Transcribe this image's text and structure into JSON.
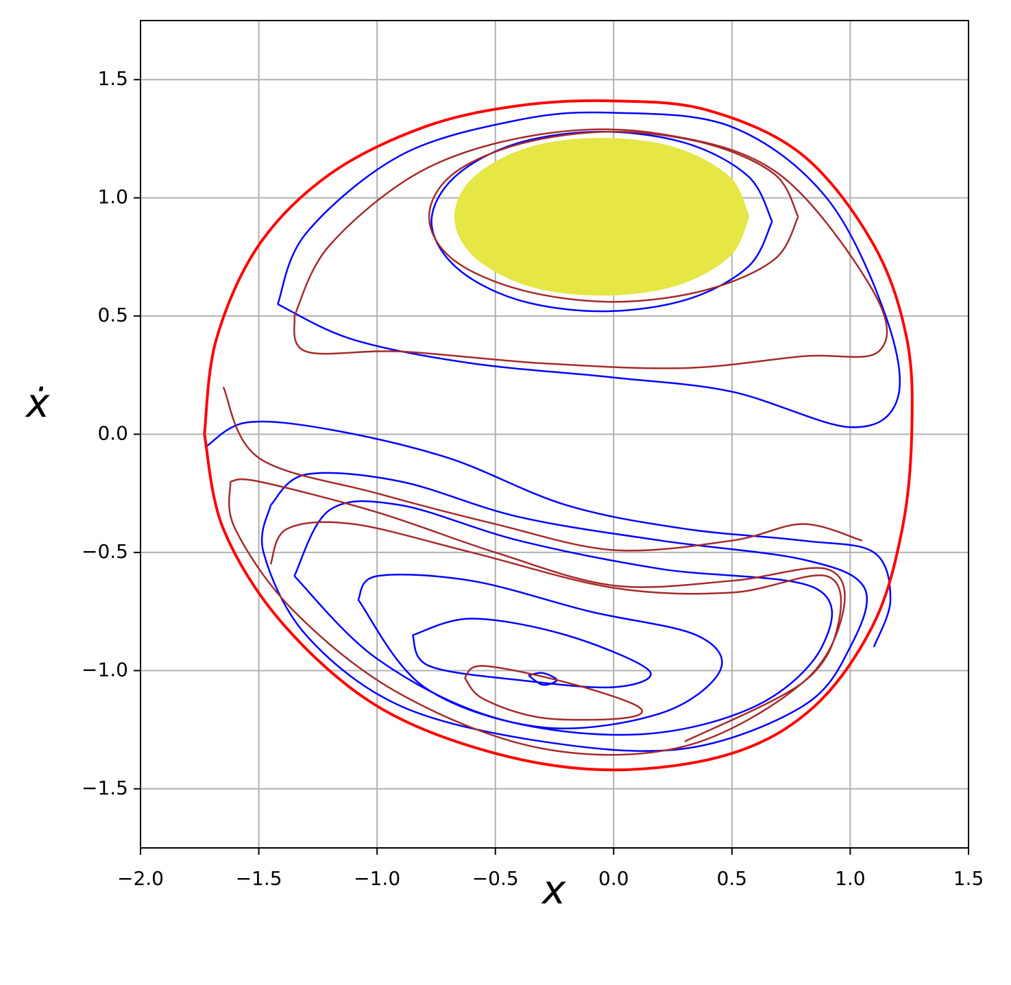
{
  "chart_data": {
    "type": "line",
    "xlabel": "x",
    "ylabel": "ẋ",
    "xlim": [
      -2,
      1.5
    ],
    "ylim": [
      -1.75,
      1.75
    ],
    "xticks": [
      {
        "value": -2,
        "label": "−2.0"
      },
      {
        "value": -1.5,
        "label": "−1.5"
      },
      {
        "value": -1,
        "label": "−1.0"
      },
      {
        "value": -0.5,
        "label": "−0.5"
      },
      {
        "value": 0,
        "label": "0.0"
      },
      0.5,
      {
        "value": 1,
        "label": "1.0"
      },
      1.5
    ],
    "yticks": [
      {
        "value": -1.5,
        "label": "−1.5"
      },
      {
        "value": -1,
        "label": "−1.0"
      },
      {
        "value": -0.5,
        "label": "−0.5"
      },
      {
        "value": 0,
        "label": "0.0"
      },
      0.5,
      {
        "value": 1,
        "label": "1.0"
      },
      1.5
    ],
    "grid": true,
    "series": [
      {
        "color": "#e6e645",
        "fill": true,
        "x": [
          0.57,
          0.49,
          0.26,
          -0.05,
          -0.36,
          -0.59,
          -0.67,
          -0.59,
          -0.36,
          -0.05,
          0.26,
          0.49,
          0.57
        ],
        "y": [
          0.92,
          1.085,
          1.21,
          1.25,
          1.21,
          1.085,
          0.92,
          0.755,
          0.63,
          0.59,
          0.63,
          0.755,
          0.92
        ]
      },
      {
        "color": "#0000ff",
        "x": [
          0.67,
          0.57,
          0.31,
          -0.05,
          -0.41,
          -0.67,
          -0.77,
          -0.67,
          -0.41,
          -0.05,
          0.31,
          0.57,
          0.67
        ],
        "y": [
          0.9,
          1.09,
          1.23,
          1.28,
          1.23,
          1.09,
          0.9,
          0.71,
          0.57,
          0.52,
          0.57,
          0.71,
          0.9
        ]
      },
      {
        "color": "#0000ff",
        "x": [
          -1.42,
          -1.3,
          -0.9,
          -0.4,
          0,
          0.5,
          0.9,
          1.15,
          1.2,
          1.0,
          0.5,
          0,
          -0.6,
          -1.1,
          -1.42
        ],
        "y": [
          0.55,
          0.85,
          1.18,
          1.33,
          1.36,
          1.3,
          1.0,
          0.5,
          0.15,
          0.03,
          0.18,
          0.24,
          0.3,
          0.4,
          0.55
        ]
      },
      {
        "color": "#0000ff",
        "x": [
          -1.72,
          -1.55,
          -1.2,
          -0.7,
          -0.2,
          0.3,
          0.8,
          1.1,
          1.17,
          1.1
        ],
        "y": [
          -0.05,
          0.05,
          0.02,
          -0.1,
          -0.3,
          -0.4,
          -0.45,
          -0.5,
          -0.7,
          -0.9
        ]
      },
      {
        "color": "#0000ff",
        "x": [
          -1.45,
          -1.3,
          -0.9,
          -0.4,
          0.2,
          0.8,
          1.06,
          1.0,
          0.8,
          0.3,
          -0.3,
          -0.9,
          -1.3,
          -1.48,
          -1.45
        ],
        "y": [
          -0.3,
          -0.17,
          -0.2,
          -0.35,
          -0.45,
          -0.53,
          -0.65,
          -0.9,
          -1.15,
          -1.33,
          -1.3,
          -1.15,
          -0.85,
          -0.5,
          -0.3
        ]
      },
      {
        "color": "#0000ff",
        "x": [
          -1.35,
          -1.2,
          -0.9,
          -0.4,
          0.2,
          0.85,
          0.88,
          0.6,
          0.1,
          -0.5,
          -1.0,
          -1.35
        ],
        "y": [
          -0.6,
          -0.32,
          -0.3,
          -0.45,
          -0.57,
          -0.65,
          -0.9,
          -1.15,
          -1.27,
          -1.2,
          -0.95,
          -0.6
        ]
      },
      {
        "color": "#0000ff",
        "x": [
          -1.08,
          -1.0,
          -0.6,
          -0.1,
          0.35,
          0.45,
          0.2,
          -0.3,
          -0.8,
          -1.08
        ],
        "y": [
          -0.7,
          -0.6,
          -0.62,
          -0.75,
          -0.85,
          -1.0,
          -1.18,
          -1.24,
          -1.07,
          -0.7
        ]
      },
      {
        "color": "#0000ff",
        "x": [
          -0.85,
          -0.6,
          -0.2,
          0.15,
          0.0,
          -0.4,
          -0.78,
          -0.85
        ],
        "y": [
          -0.85,
          -0.78,
          -0.85,
          -1.0,
          -1.07,
          -1.04,
          -0.98,
          -0.85
        ]
      },
      {
        "color": "#0000ff",
        "x": [
          -0.36,
          -0.3,
          -0.24,
          -0.3,
          -0.36
        ],
        "y": [
          -1.02,
          -1.01,
          -1.04,
          -1.06,
          -1.02
        ]
      },
      {
        "color": "#a52a2a",
        "x": [
          0.78,
          0.68,
          0.39,
          0,
          -0.39,
          -0.68,
          -0.78,
          -0.68,
          -0.39,
          0,
          0.39,
          0.68,
          0.78
        ],
        "y": [
          0.92,
          1.1,
          1.23,
          1.28,
          1.23,
          1.1,
          0.92,
          0.74,
          0.61,
          0.56,
          0.61,
          0.74,
          0.92
        ]
      },
      {
        "color": "#a52a2a",
        "x": [
          -1.35,
          -1.2,
          -0.8,
          -0.3,
          0.2,
          0.7,
          1.1,
          1.12,
          0.8,
          0.3,
          -0.3,
          -0.9,
          -1.3,
          -1.35
        ],
        "y": [
          0.5,
          0.8,
          1.12,
          1.27,
          1.27,
          1.1,
          0.6,
          0.35,
          0.33,
          0.28,
          0.3,
          0.35,
          0.35,
          0.5
        ]
      },
      {
        "color": "#a52a2a",
        "x": [
          -1.65,
          -1.5,
          -1.0,
          -0.5,
          0,
          0.5,
          0.8,
          1.05
        ],
        "y": [
          0.2,
          -0.1,
          -0.25,
          -0.38,
          -0.49,
          -0.45,
          -0.38,
          -0.45
        ]
      },
      {
        "color": "#a52a2a",
        "x": [
          -1.62,
          -1.5,
          -1.0,
          -0.5,
          0,
          0.5,
          0.9,
          0.97,
          0.8,
          0.3,
          -0.3,
          -0.9,
          -1.35,
          -1.6,
          -1.62
        ],
        "y": [
          -0.2,
          -0.2,
          -0.33,
          -0.5,
          -0.64,
          -0.62,
          -0.57,
          -0.75,
          -1.05,
          -1.32,
          -1.33,
          -1.1,
          -0.75,
          -0.4,
          -0.2
        ]
      },
      {
        "color": "#a52a2a",
        "x": [
          -1.45,
          -1.38,
          -1.1,
          -0.6,
          0,
          0.5,
          0.9,
          0.95,
          0.8,
          0.3
        ],
        "y": [
          -0.55,
          -0.4,
          -0.38,
          -0.5,
          -0.65,
          -0.67,
          -0.6,
          -0.8,
          -1.05,
          -1.3
        ]
      },
      {
        "color": "#a52a2a",
        "x": [
          -0.63,
          -0.55,
          -0.2,
          0.1,
          0.05,
          -0.3,
          -0.55,
          -0.63
        ],
        "y": [
          -1.03,
          -0.98,
          -1.05,
          -1.15,
          -1.2,
          -1.2,
          -1.12,
          -1.03
        ]
      },
      {
        "color": "#ff0000",
        "width": 4,
        "x": [
          -1.73,
          -1.68,
          -1.5,
          -1.2,
          -0.8,
          -0.4,
          0,
          0.4,
          0.8,
          1.1,
          1.24,
          1.26,
          1.22,
          1.1,
          0.85,
          0.5,
          0,
          -0.5,
          -1.0,
          -1.4,
          -1.65,
          -1.73
        ],
        "y": [
          0,
          0.4,
          0.8,
          1.1,
          1.3,
          1.39,
          1.41,
          1.37,
          1.18,
          0.8,
          0.4,
          0,
          -0.4,
          -0.8,
          -1.15,
          -1.35,
          -1.42,
          -1.35,
          -1.15,
          -0.8,
          -0.4,
          0
        ]
      }
    ]
  }
}
